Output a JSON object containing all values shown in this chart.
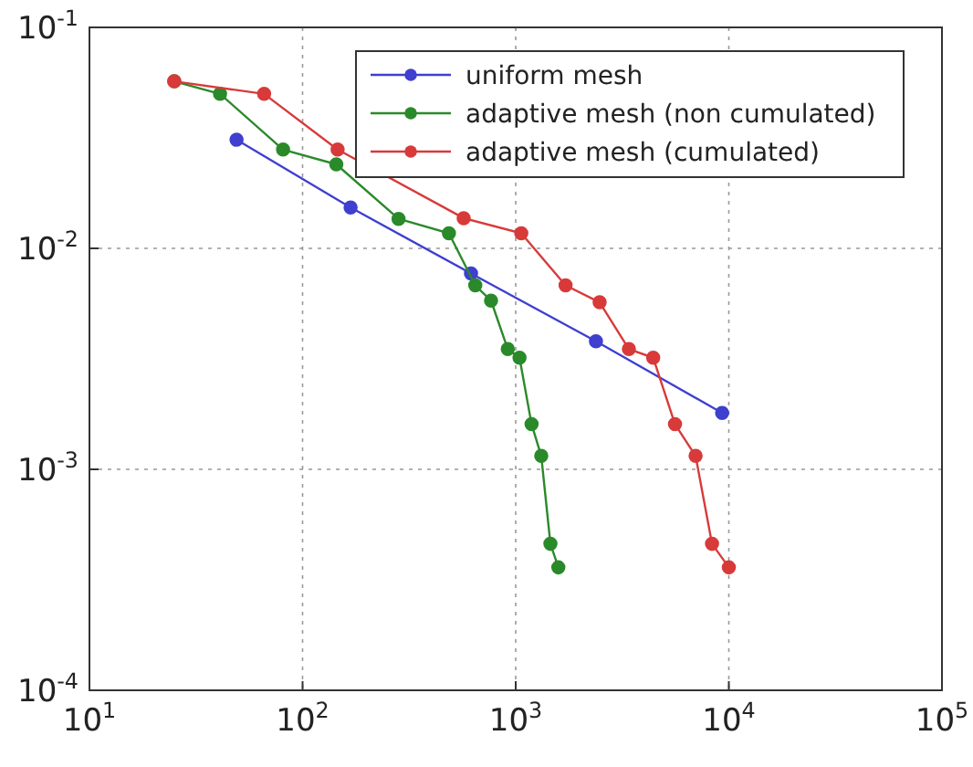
{
  "chart_data": {
    "type": "line",
    "log": "xy",
    "grid": true,
    "legend": "top right",
    "marker": "circle",
    "line_style": "solid",
    "xlim": [
      10,
      100000
    ],
    "ylim": [
      0.0001,
      0.1
    ],
    "xticks": [
      {
        "value": 10,
        "label": "10$^{1}$"
      },
      {
        "value": 100,
        "label": "10$^{2}$"
      },
      {
        "value": 1000,
        "label": "10$^{3}$"
      },
      {
        "value": 10000,
        "label": "10$^{4}$"
      },
      {
        "value": 100000,
        "label": "10$^{5}$"
      }
    ],
    "yticks": [
      {
        "value": 0.0001,
        "label": "10$^{-4}$"
      },
      {
        "value": 0.001,
        "label": "10$^{-3}$"
      },
      {
        "value": 0.01,
        "label": "10$^{-2}$"
      },
      {
        "value": 0.1,
        "label": "10$^{-1}$"
      }
    ],
    "series": [
      {
        "name": "uniform mesh",
        "color": "#3f3fd0",
        "x": [
          49,
          168,
          617,
          2380,
          9300
        ],
        "values": [
          0.031,
          0.0153,
          0.0077,
          0.0038,
          0.0018
        ]
      },
      {
        "name": "adaptive mesh (non cumulated)",
        "color": "#2a8a2a",
        "x": [
          25,
          41,
          81,
          144,
          282,
          486,
          646,
          766,
          918,
          1042,
          1187,
          1318,
          1455,
          1585
        ],
        "values": [
          0.057,
          0.05,
          0.028,
          0.024,
          0.0136,
          0.0117,
          0.0068,
          0.0058,
          0.0035,
          0.0032,
          0.0016,
          0.00115,
          0.00046,
          0.00036
        ]
      },
      {
        "name": "adaptive mesh (cumulated)",
        "color": "#d83a3a",
        "x": [
          25,
          66,
          146,
          570,
          1062,
          1714,
          2476,
          3397,
          4417,
          5590,
          6983,
          8340,
          10000
        ],
        "values": [
          0.057,
          0.05,
          0.028,
          0.0137,
          0.0117,
          0.0068,
          0.0057,
          0.0035,
          0.0032,
          0.0016,
          0.00115,
          0.00046,
          0.00036
        ]
      }
    ]
  }
}
